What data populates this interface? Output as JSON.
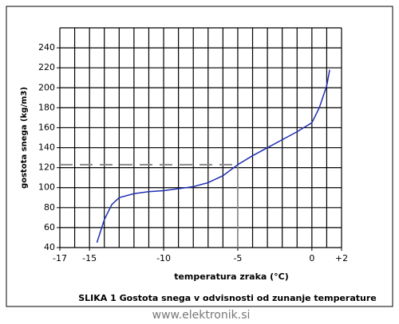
{
  "chart_data": {
    "type": "line",
    "y_label": "gostota snega (kg/m3)",
    "x_label": "temperatura zraka (°C)",
    "caption": "SLIKA 1 Gostota snega v odvisnosti od zunanje temperature",
    "watermark": "www.elektronik.si",
    "x": [
      -14.5,
      -14,
      -13.5,
      -13,
      -12,
      -11,
      -10,
      -9,
      -8,
      -7,
      -6,
      -5,
      -4,
      -3,
      -2,
      -1,
      0,
      0.5,
      1,
      1.2
    ],
    "series": [
      {
        "color": "#1f2fb0",
        "values": [
          45,
          68,
          83,
          90,
          94,
          96,
          97,
          99,
          101,
          105,
          112,
          123,
          132,
          140,
          148,
          156,
          165,
          180,
          202,
          218
        ]
      }
    ],
    "xlim": [
      -17,
      2
    ],
    "xticks": [
      -17,
      -15,
      -10,
      -5,
      0,
      {
        "value": 2,
        "label": "+2"
      }
    ],
    "ylim": [
      40,
      260
    ],
    "yticks": [
      40,
      60,
      80,
      100,
      120,
      140,
      160,
      180,
      200,
      220,
      240
    ],
    "reference": {
      "x": -5,
      "y": 123
    },
    "grid": true
  }
}
